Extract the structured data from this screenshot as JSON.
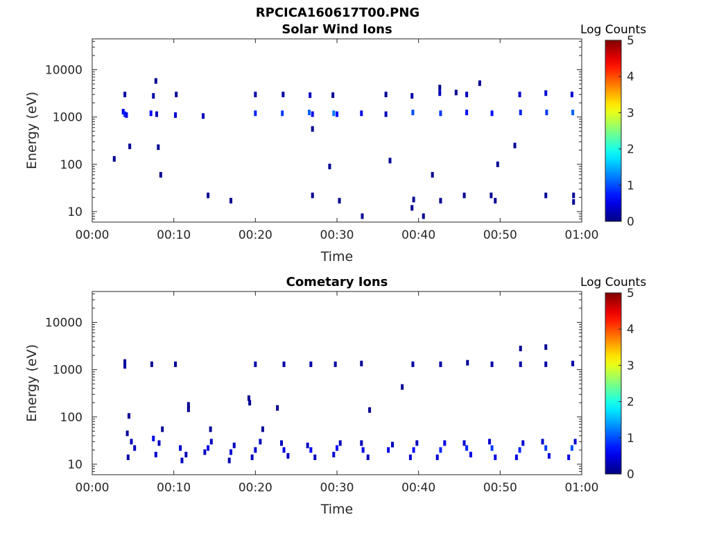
{
  "figure": {
    "title": "RPCICA160617T00.PNG"
  },
  "colorbar": {
    "label": "Log Counts",
    "ticks": [
      "0",
      "1",
      "2",
      "3",
      "4",
      "5"
    ],
    "colormap": [
      "#00008f",
      "#0000ff",
      "#00ffff",
      "#ffff00",
      "#ff0000",
      "#800000"
    ]
  },
  "chart_data": [
    {
      "type": "heatmap",
      "title": "Solar Wind Ions",
      "xlabel": "Time",
      "ylabel": "Energy (eV)",
      "x_ticks": [
        "00:00",
        "00:10",
        "00:20",
        "00:30",
        "00:40",
        "00:50",
        "01:00"
      ],
      "y_ticks": [
        "10",
        "100",
        "1000",
        "10000"
      ],
      "xlim_minutes": [
        0,
        60
      ],
      "ylim_eV": [
        6,
        45000
      ],
      "yscale": "log",
      "clim": [
        0,
        5
      ],
      "events": [
        {
          "t": 3.8,
          "e": 1300,
          "v": 0.6
        },
        {
          "t": 4.0,
          "e": 1150,
          "v": 0.8
        },
        {
          "t": 4.2,
          "e": 1100,
          "v": 0.5
        },
        {
          "t": 4.0,
          "e": 3000,
          "v": 0.2
        },
        {
          "t": 7.2,
          "e": 1200,
          "v": 0.6
        },
        {
          "t": 7.5,
          "e": 2800,
          "v": 0.2
        },
        {
          "t": 7.8,
          "e": 5800,
          "v": 0.1
        },
        {
          "t": 7.9,
          "e": 1150,
          "v": 0.3
        },
        {
          "t": 10.2,
          "e": 1100,
          "v": 0.4
        },
        {
          "t": 10.3,
          "e": 3000,
          "v": 0.1
        },
        {
          "t": 13.6,
          "e": 1050,
          "v": 0.3
        },
        {
          "t": 20.0,
          "e": 1200,
          "v": 0.8
        },
        {
          "t": 20.0,
          "e": 3000,
          "v": 0.2
        },
        {
          "t": 23.3,
          "e": 1200,
          "v": 0.9
        },
        {
          "t": 23.4,
          "e": 3000,
          "v": 0.2
        },
        {
          "t": 26.6,
          "e": 1250,
          "v": 1.1
        },
        {
          "t": 26.7,
          "e": 2900,
          "v": 0.3
        },
        {
          "t": 27.0,
          "e": 1150,
          "v": 0.5
        },
        {
          "t": 29.6,
          "e": 1200,
          "v": 1.2
        },
        {
          "t": 30.0,
          "e": 1150,
          "v": 0.7
        },
        {
          "t": 29.5,
          "e": 2900,
          "v": 0.1
        },
        {
          "t": 33.0,
          "e": 1200,
          "v": 0.5
        },
        {
          "t": 36.0,
          "e": 1150,
          "v": 0.3
        },
        {
          "t": 36.0,
          "e": 3000,
          "v": 0.1
        },
        {
          "t": 39.3,
          "e": 1250,
          "v": 1.0
        },
        {
          "t": 39.2,
          "e": 2800,
          "v": 0.2
        },
        {
          "t": 42.7,
          "e": 1200,
          "v": 0.9
        },
        {
          "t": 42.6,
          "e": 3200,
          "v": 0.3
        },
        {
          "t": 42.6,
          "e": 4200,
          "v": 0.1
        },
        {
          "t": 45.9,
          "e": 1250,
          "v": 0.7
        },
        {
          "t": 45.9,
          "e": 3000,
          "v": 0.3
        },
        {
          "t": 44.6,
          "e": 3300,
          "v": 0.1
        },
        {
          "t": 49.0,
          "e": 1200,
          "v": 0.7
        },
        {
          "t": 47.5,
          "e": 5200,
          "v": 0.1
        },
        {
          "t": 52.5,
          "e": 1250,
          "v": 0.8
        },
        {
          "t": 52.4,
          "e": 3000,
          "v": 0.4
        },
        {
          "t": 55.7,
          "e": 1250,
          "v": 0.9
        },
        {
          "t": 55.6,
          "e": 3200,
          "v": 0.4
        },
        {
          "t": 58.9,
          "e": 1250,
          "v": 1.1
        },
        {
          "t": 58.8,
          "e": 3000,
          "v": 0.4
        },
        {
          "t": 2.7,
          "e": 130,
          "v": 0.1
        },
        {
          "t": 4.6,
          "e": 240,
          "v": 0.1
        },
        {
          "t": 8.1,
          "e": 230,
          "v": 0.1
        },
        {
          "t": 8.4,
          "e": 60,
          "v": 0.1
        },
        {
          "t": 27.0,
          "e": 560,
          "v": 0.1
        },
        {
          "t": 29.1,
          "e": 90,
          "v": 0.1
        },
        {
          "t": 36.5,
          "e": 120,
          "v": 0.1
        },
        {
          "t": 41.7,
          "e": 60,
          "v": 0.1
        },
        {
          "t": 51.8,
          "e": 250,
          "v": 0.1
        },
        {
          "t": 49.7,
          "e": 100,
          "v": 0.1
        },
        {
          "t": 14.2,
          "e": 22,
          "v": 0.1
        },
        {
          "t": 17.0,
          "e": 17,
          "v": 0.1
        },
        {
          "t": 27.0,
          "e": 22,
          "v": 0.1
        },
        {
          "t": 30.3,
          "e": 17,
          "v": 0.1
        },
        {
          "t": 33.1,
          "e": 8,
          "v": 0.1
        },
        {
          "t": 39.4,
          "e": 18,
          "v": 0.1
        },
        {
          "t": 39.2,
          "e": 12,
          "v": 0.1
        },
        {
          "t": 40.6,
          "e": 8,
          "v": 0.1
        },
        {
          "t": 42.7,
          "e": 17,
          "v": 0.1
        },
        {
          "t": 45.6,
          "e": 22,
          "v": 0.1
        },
        {
          "t": 48.9,
          "e": 22,
          "v": 0.1
        },
        {
          "t": 49.4,
          "e": 17,
          "v": 0.1
        },
        {
          "t": 55.6,
          "e": 22,
          "v": 0.1
        },
        {
          "t": 59.0,
          "e": 22,
          "v": 0.1
        },
        {
          "t": 59.0,
          "e": 16,
          "v": 0.1
        }
      ]
    },
    {
      "type": "heatmap",
      "title": "Cometary Ions",
      "xlabel": "Time",
      "ylabel": "Energy (eV)",
      "x_ticks": [
        "00:00",
        "00:10",
        "00:20",
        "00:30",
        "00:40",
        "00:50",
        "01:00"
      ],
      "y_ticks": [
        "10",
        "100",
        "1000",
        "10000"
      ],
      "xlim_minutes": [
        0,
        60
      ],
      "ylim_eV": [
        6,
        45000
      ],
      "yscale": "log",
      "clim": [
        0,
        5
      ],
      "events": [
        {
          "t": 4.0,
          "e": 1200,
          "v": 0.2
        },
        {
          "t": 4.0,
          "e": 1450,
          "v": 0.1
        },
        {
          "t": 7.3,
          "e": 1300,
          "v": 0.1
        },
        {
          "t": 10.2,
          "e": 1300,
          "v": 0.1
        },
        {
          "t": 20.0,
          "e": 1300,
          "v": 0.2
        },
        {
          "t": 23.5,
          "e": 1300,
          "v": 0.2
        },
        {
          "t": 26.8,
          "e": 1300,
          "v": 0.2
        },
        {
          "t": 29.8,
          "e": 1300,
          "v": 0.2
        },
        {
          "t": 33.0,
          "e": 1350,
          "v": 0.1
        },
        {
          "t": 39.3,
          "e": 1300,
          "v": 0.2
        },
        {
          "t": 42.7,
          "e": 1300,
          "v": 0.2
        },
        {
          "t": 46.0,
          "e": 1400,
          "v": 0.1
        },
        {
          "t": 49.0,
          "e": 1300,
          "v": 0.2
        },
        {
          "t": 52.5,
          "e": 1300,
          "v": 0.2
        },
        {
          "t": 52.5,
          "e": 2800,
          "v": 0.1
        },
        {
          "t": 55.6,
          "e": 1300,
          "v": 0.2
        },
        {
          "t": 55.6,
          "e": 3000,
          "v": 0.1
        },
        {
          "t": 58.9,
          "e": 1350,
          "v": 0.2
        },
        {
          "t": 11.8,
          "e": 180,
          "v": 0.1
        },
        {
          "t": 11.8,
          "e": 145,
          "v": 0.1
        },
        {
          "t": 19.2,
          "e": 250,
          "v": 0.1
        },
        {
          "t": 19.3,
          "e": 200,
          "v": 0.1
        },
        {
          "t": 22.7,
          "e": 155,
          "v": 0.1
        },
        {
          "t": 34.0,
          "e": 140,
          "v": 0.1
        },
        {
          "t": 38.0,
          "e": 430,
          "v": 0.1
        },
        {
          "t": 4.5,
          "e": 105,
          "v": 0.1
        },
        {
          "t": 8.6,
          "e": 55,
          "v": 0.1
        },
        {
          "t": 4.3,
          "e": 45,
          "v": 0.1
        },
        {
          "t": 14.5,
          "e": 55,
          "v": 0.1
        },
        {
          "t": 20.9,
          "e": 55,
          "v": 0.1
        },
        {
          "t": 4.8,
          "e": 30,
          "v": 0.3
        },
        {
          "t": 5.2,
          "e": 22,
          "v": 0.3
        },
        {
          "t": 4.4,
          "e": 14,
          "v": 0.2
        },
        {
          "t": 7.5,
          "e": 35,
          "v": 0.5
        },
        {
          "t": 8.2,
          "e": 28,
          "v": 0.3
        },
        {
          "t": 7.8,
          "e": 16,
          "v": 0.4
        },
        {
          "t": 10.8,
          "e": 22,
          "v": 0.4
        },
        {
          "t": 11.5,
          "e": 16,
          "v": 0.3
        },
        {
          "t": 11.0,
          "e": 12,
          "v": 0.3
        },
        {
          "t": 14.2,
          "e": 22,
          "v": 0.5
        },
        {
          "t": 13.8,
          "e": 18,
          "v": 0.3
        },
        {
          "t": 14.6,
          "e": 30,
          "v": 0.3
        },
        {
          "t": 17.0,
          "e": 18,
          "v": 0.4
        },
        {
          "t": 17.4,
          "e": 25,
          "v": 0.3
        },
        {
          "t": 16.8,
          "e": 12,
          "v": 0.2
        },
        {
          "t": 20.0,
          "e": 20,
          "v": 0.4
        },
        {
          "t": 20.6,
          "e": 30,
          "v": 0.3
        },
        {
          "t": 19.6,
          "e": 14,
          "v": 0.3
        },
        {
          "t": 23.5,
          "e": 20,
          "v": 0.5
        },
        {
          "t": 24.0,
          "e": 15,
          "v": 0.4
        },
        {
          "t": 23.2,
          "e": 28,
          "v": 0.3
        },
        {
          "t": 26.8,
          "e": 20,
          "v": 0.6
        },
        {
          "t": 27.3,
          "e": 14,
          "v": 0.3
        },
        {
          "t": 26.4,
          "e": 25,
          "v": 0.3
        },
        {
          "t": 30.0,
          "e": 22,
          "v": 0.6
        },
        {
          "t": 29.6,
          "e": 16,
          "v": 0.4
        },
        {
          "t": 30.4,
          "e": 28,
          "v": 0.3
        },
        {
          "t": 33.2,
          "e": 20,
          "v": 0.5
        },
        {
          "t": 33.8,
          "e": 14,
          "v": 0.3
        },
        {
          "t": 33.0,
          "e": 28,
          "v": 0.3
        },
        {
          "t": 36.3,
          "e": 20,
          "v": 0.5
        },
        {
          "t": 36.8,
          "e": 26,
          "v": 0.3
        },
        {
          "t": 39.4,
          "e": 20,
          "v": 0.7
        },
        {
          "t": 39.0,
          "e": 14,
          "v": 0.4
        },
        {
          "t": 39.8,
          "e": 28,
          "v": 0.3
        },
        {
          "t": 42.7,
          "e": 20,
          "v": 0.8
        },
        {
          "t": 43.2,
          "e": 28,
          "v": 0.5
        },
        {
          "t": 42.3,
          "e": 14,
          "v": 0.4
        },
        {
          "t": 45.9,
          "e": 22,
          "v": 0.8
        },
        {
          "t": 46.4,
          "e": 16,
          "v": 0.5
        },
        {
          "t": 45.6,
          "e": 28,
          "v": 0.4
        },
        {
          "t": 49.0,
          "e": 22,
          "v": 0.9
        },
        {
          "t": 49.4,
          "e": 14,
          "v": 0.5
        },
        {
          "t": 48.7,
          "e": 30,
          "v": 0.4
        },
        {
          "t": 52.4,
          "e": 20,
          "v": 0.8
        },
        {
          "t": 52.0,
          "e": 14,
          "v": 0.5
        },
        {
          "t": 52.8,
          "e": 28,
          "v": 0.4
        },
        {
          "t": 55.6,
          "e": 22,
          "v": 0.9
        },
        {
          "t": 56.0,
          "e": 15,
          "v": 0.5
        },
        {
          "t": 55.2,
          "e": 30,
          "v": 0.4
        },
        {
          "t": 58.8,
          "e": 22,
          "v": 1.0
        },
        {
          "t": 58.4,
          "e": 14,
          "v": 0.5
        },
        {
          "t": 59.2,
          "e": 30,
          "v": 0.4
        }
      ]
    }
  ]
}
